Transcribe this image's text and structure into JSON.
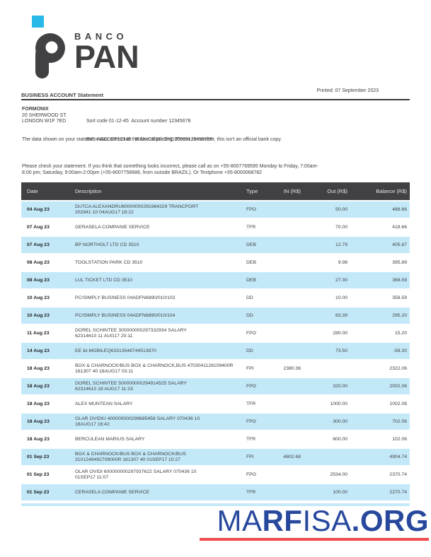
{
  "colors": {
    "brand_dark": "#414042",
    "brand_cyan": "#29b9e8",
    "table_header_bg": "#414042",
    "row_blue": "#c3e9f9",
    "watermark_blue": "#27489d",
    "watermark_red": "#ef4b4c",
    "text": "#414042"
  },
  "brand": {
    "logo_word_top": "BANCO",
    "logo_word_bottom": "PAN"
  },
  "header": {
    "title": "BUSINESS ACCOUNT Statement",
    "printed": "Printed: 07 September 2023"
  },
  "account": {
    "name": "FORMONIX",
    "address_line_1": "20 SHERWOOD ST.",
    "address_line_2": "LONDON W1F 7ED",
    "sort_code_line": "Sort code 01-12-45  Account number 12345678",
    "bic_line": "BIC. ABCDEF12349   IBAN:GB88LOYD30009123456789"
  },
  "notices": {
    "disclaimer": "The data shown on your statement was correct at the time of printing. Please remember, this isn't an official bank copy.",
    "check_statement": "Please check your statement. If you think that something looks incorrect, please call as on +55-8007769595 Monday to Friday, 7:00am-8:00 pm; Saturday, 9:00am-2:00pm (+55-8007758686, from outside BRAZIL). Or Textphone +55-8000068782"
  },
  "table": {
    "columns": [
      "Date",
      "Description",
      "Type",
      "IN (R$)",
      "Out (R$)",
      "Balance (R$)"
    ],
    "rows": [
      {
        "date": "04 Aug 23",
        "desc": [
          "DUTCA ALEXANDRU60000000291984329 TRANCPORT",
          "202941 10 04AUG17 18:22"
        ],
        "type": "FPO",
        "in": "",
        "out": "50.00",
        "balance": "488.66"
      },
      {
        "date": "07 Aug 23",
        "desc": [
          "GERASELA COMPANIE SERVICE"
        ],
        "type": "TFR",
        "in": "",
        "out": "70.00",
        "balance": "418.66"
      },
      {
        "date": "07 Aug 23",
        "desc": [
          "BP NORTHOLT LTD CD 3510"
        ],
        "type": "DEB",
        "in": "",
        "out": "12.79",
        "balance": "405.87"
      },
      {
        "date": "08 Aug 23",
        "desc": [
          "TOOLSTATION PARK CD 3510"
        ],
        "type": "DEB",
        "in": "",
        "out": "9.98",
        "balance": "395.89"
      },
      {
        "date": "08 Aug 23",
        "desc": [
          "LUL TICKET LTD CD 3510"
        ],
        "type": "DEB",
        "in": "",
        "out": "27.30",
        "balance": "368.59"
      },
      {
        "date": "10 Aug 23",
        "desc": [
          "PC/SIMPLY BUSINESS 04ADFN6890/010/103"
        ],
        "type": "DD",
        "in": "",
        "out": "10.00",
        "balance": "358.59"
      },
      {
        "date": "10 Aug 23",
        "desc": [
          "PC/SIMPLY BUSINESS 04ADFN6890/010/104"
        ],
        "type": "DD",
        "in": "",
        "out": "63.39",
        "balance": "295.20"
      },
      {
        "date": "11 Aug 23",
        "desc": [
          "DOREL SCHINTEE 300000000297332934 SALARY",
          "62314610 11 AUG17 20:11"
        ],
        "type": "FPO",
        "in": "",
        "out": "280.00",
        "balance": "15.20"
      },
      {
        "date": "14 Aug 23",
        "desc": [
          "EE &t-MOBILEQ63313548744513870"
        ],
        "type": "DD",
        "in": "",
        "out": "73.50",
        "balance": "-58.30"
      },
      {
        "date": "18 Aug 23",
        "desc": [
          "BOX & CHARNOCK/BUS BOX & CHARNOCK,BUS 4703041128109400R",
          "161307 40 18AUG17 03:11"
        ],
        "type": "FPI",
        "in": "2380.36",
        "out": "",
        "balance": "2322.06"
      },
      {
        "date": "18 Aug 23",
        "desc": [
          "DOREL SCHINTEE 500000000294914525 SALARY",
          "62314610 18 AUG17 11:23"
        ],
        "type": "FPO",
        "in": "",
        "out": "320.00",
        "balance": "2002.06"
      },
      {
        "date": "18 Aug 23",
        "desc": [
          "ALEX MUNTEAN SALARY"
        ],
        "type": "TFR",
        "in": "",
        "out": "1000.00",
        "balance": "1002.06"
      },
      {
        "date": "18 Aug 23",
        "desc": [
          "OLAR OVIDIU 400000000299685458 SALARY 070436 10",
          "18AUG17 16:42"
        ],
        "type": "FPO",
        "in": "",
        "out": "300.00",
        "balance": "702.06"
      },
      {
        "date": "18 Aug 23",
        "desc": [
          "BERCULEAN MARIUS SALARY"
        ],
        "type": "TFR",
        "in": "",
        "out": "600.00",
        "balance": "102.06"
      },
      {
        "date": "01 Sep 23",
        "desc": [
          "BOX & CHARNOCK/BUS BOX & CHARNOCK/BUS",
          "3101249492709000R 161307 40 01SEP17 10:27"
        ],
        "type": "FPI",
        "in": "4802.68",
        "out": "",
        "balance": "4904.74"
      },
      {
        "date": "01 Sep 23",
        "desc": [
          "OLAR OVIDI 600000000297937622 SALARY 070436 10",
          "01SEP17 11:07"
        ],
        "type": "FPO",
        "in": "",
        "out": "2534.00",
        "balance": "2370.74"
      },
      {
        "date": "01 Sep 23",
        "desc": [
          "CERASELA COMPANIE SERVICE"
        ],
        "type": "TFR",
        "in": "",
        "out": "100.00",
        "balance": "2270.74"
      }
    ]
  },
  "watermark": {
    "parts": [
      {
        "text": "MA",
        "weight": "300"
      },
      {
        "text": "RF",
        "weight": "700"
      },
      {
        "text": "I",
        "weight": "300"
      },
      {
        "text": "S",
        "weight": "500"
      },
      {
        "text": "A",
        "weight": "300"
      },
      {
        "text": ".ORG",
        "weight": "700"
      }
    ]
  }
}
